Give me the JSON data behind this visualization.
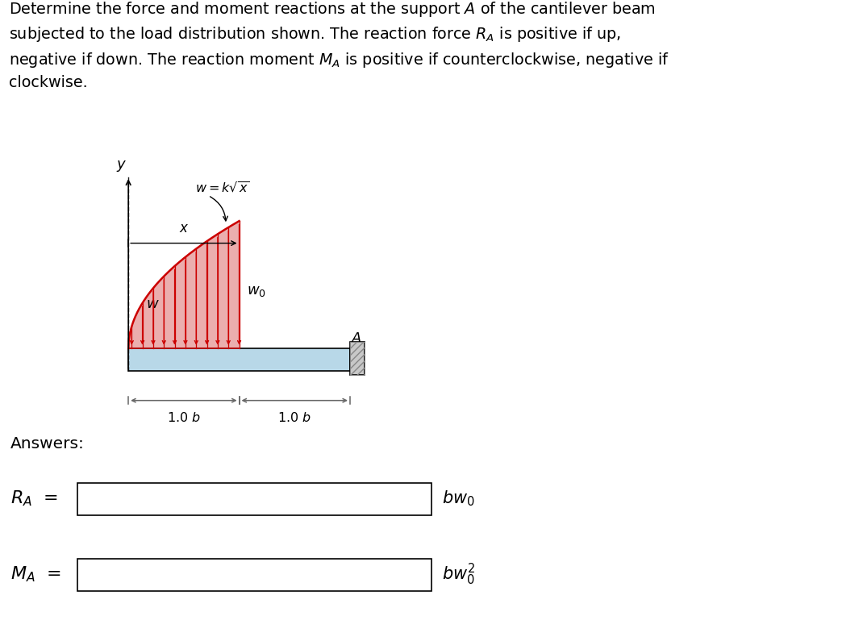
{
  "bg_color": "#ffffff",
  "text_color": "#000000",
  "beam_color": "#b8d8e8",
  "beam_edge_color": "#000000",
  "load_curve_color": "#cc0000",
  "load_fill_color": "#e8a0a0",
  "arrow_color": "#cc0000",
  "wall_color": "#c8c8c8",
  "wall_edge_color": "#000000",
  "wall_hatch_color": "#888888",
  "dim_color": "#666666",
  "answers_label": "Answers:",
  "ra_label": "R_A =",
  "ra_units": "bw_0",
  "ma_label": "M_A =",
  "ma_units": "bw_0^2"
}
